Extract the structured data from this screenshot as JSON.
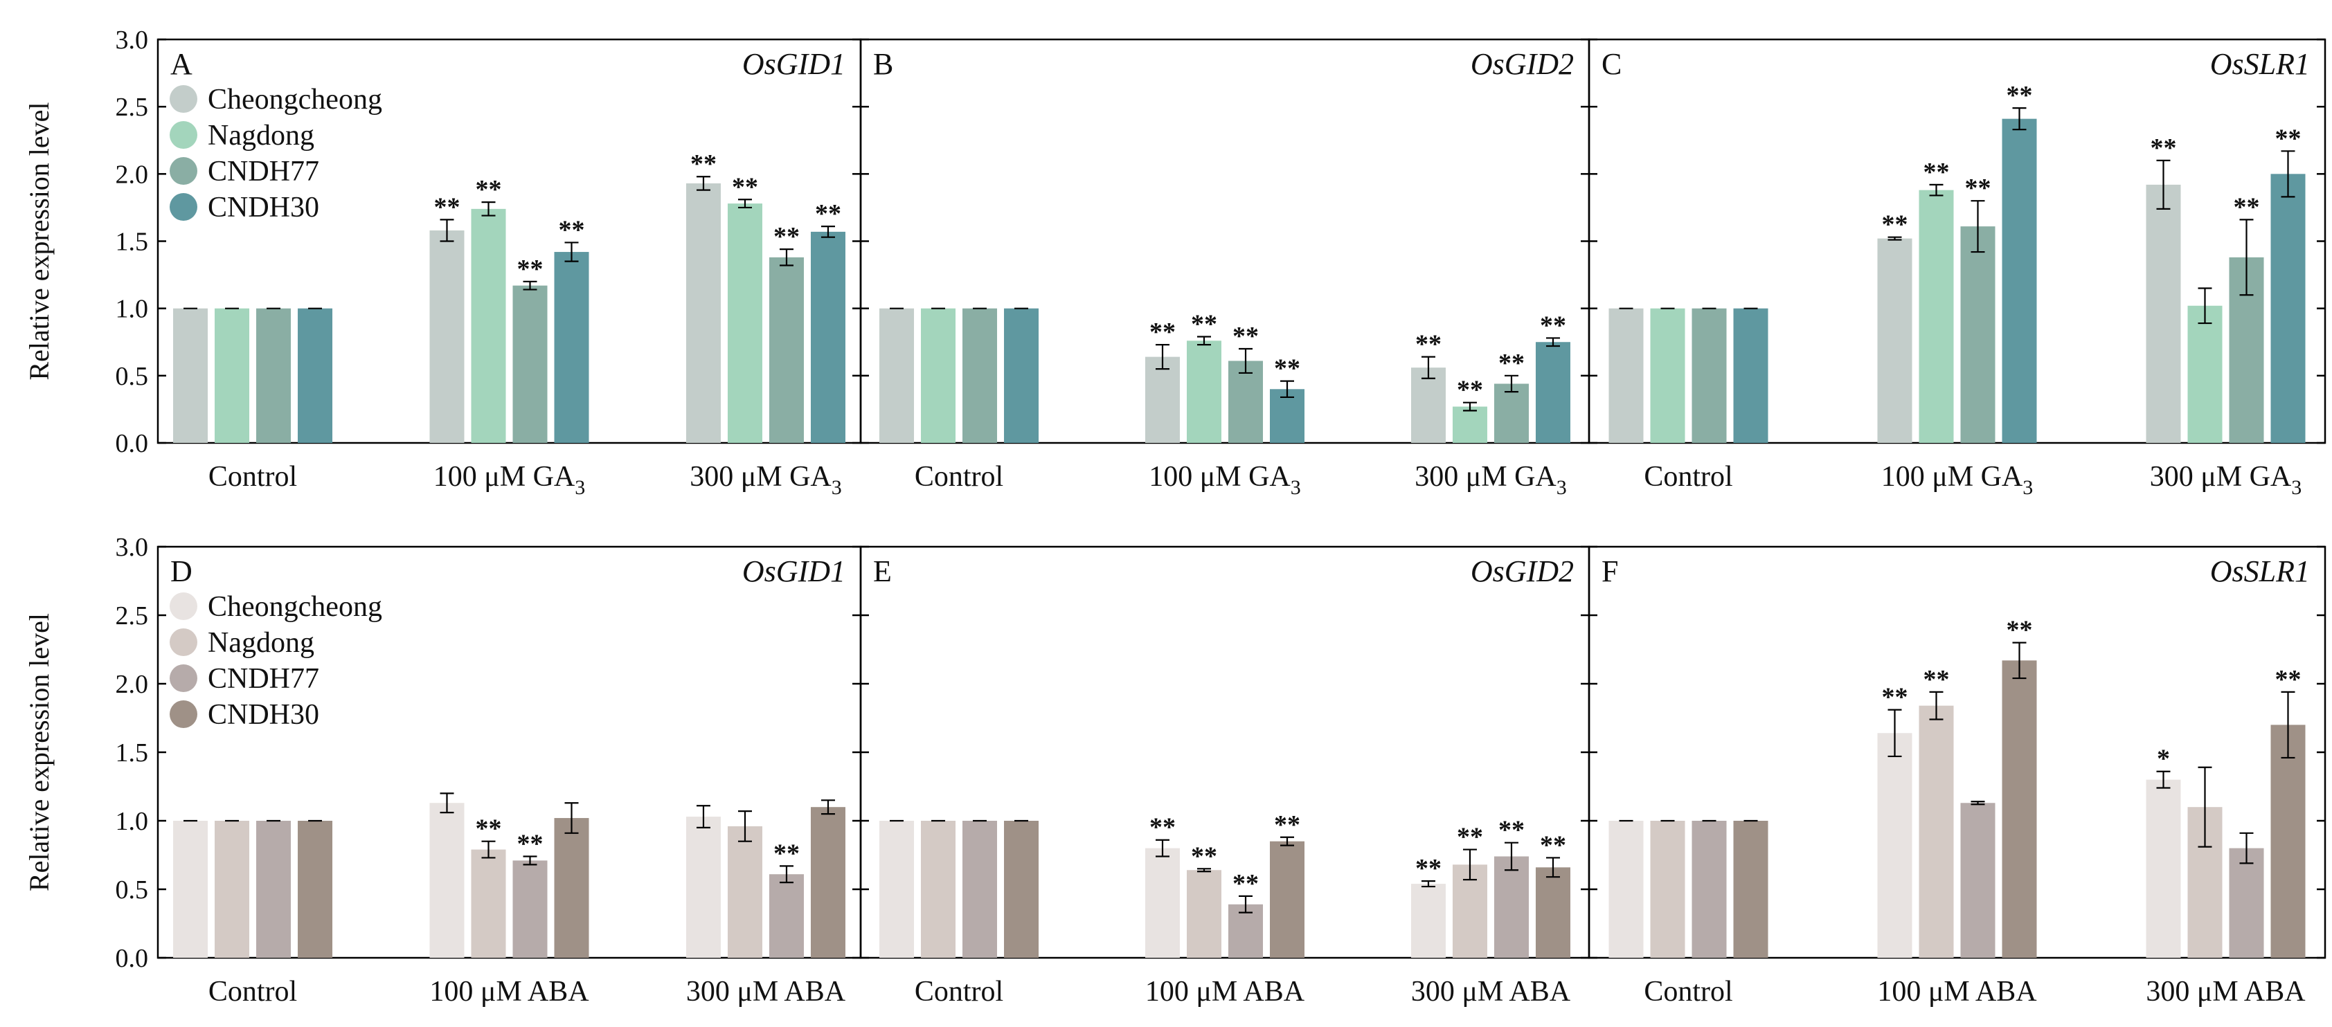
{
  "chart_data": [
    {
      "panel": "A",
      "gene": "OsGID1",
      "type": "bar",
      "categories": [
        "Control",
        "100 μM GA",
        "300 μM GA"
      ],
      "category_subscripts": [
        "",
        "3",
        "3"
      ],
      "series": [
        {
          "name": "Cheongcheong",
          "color": "#c3cdca",
          "values": [
            1.0,
            1.58,
            1.93
          ],
          "errors": [
            0.0,
            0.08,
            0.05
          ],
          "sig": [
            "",
            "**",
            "**"
          ]
        },
        {
          "name": "Nagdong",
          "color": "#a3d5bc",
          "values": [
            1.0,
            1.74,
            1.78
          ],
          "errors": [
            0.0,
            0.05,
            0.03
          ],
          "sig": [
            "",
            "**",
            "**"
          ]
        },
        {
          "name": "CNDH77",
          "color": "#8aaea4",
          "values": [
            1.0,
            1.17,
            1.38
          ],
          "errors": [
            0.0,
            0.03,
            0.06
          ],
          "sig": [
            "",
            "**",
            "**"
          ]
        },
        {
          "name": "CNDH30",
          "color": "#5f98a0",
          "values": [
            1.0,
            1.42,
            1.57
          ],
          "errors": [
            0.0,
            0.07,
            0.04
          ],
          "sig": [
            "",
            "**",
            "**"
          ]
        }
      ],
      "ylim": [
        0,
        3.0
      ],
      "yticks": [
        "0.0",
        "0.5",
        "1.0",
        "1.5",
        "2.0",
        "2.5",
        "3.0"
      ],
      "ylabel": "Relative expression level",
      "legend": true
    },
    {
      "panel": "B",
      "gene": "OsGID2",
      "type": "bar",
      "categories": [
        "Control",
        "100 μM GA",
        "300 μM GA"
      ],
      "category_subscripts": [
        "",
        "3",
        "3"
      ],
      "series": [
        {
          "name": "Cheongcheong",
          "color": "#c3cdca",
          "values": [
            1.0,
            0.64,
            0.56
          ],
          "errors": [
            0.0,
            0.09,
            0.08
          ],
          "sig": [
            "",
            "**",
            "**"
          ]
        },
        {
          "name": "Nagdong",
          "color": "#a3d5bc",
          "values": [
            1.0,
            0.76,
            0.27
          ],
          "errors": [
            0.0,
            0.03,
            0.03
          ],
          "sig": [
            "",
            "**",
            "**"
          ]
        },
        {
          "name": "CNDH77",
          "color": "#8aaea4",
          "values": [
            1.0,
            0.61,
            0.44
          ],
          "errors": [
            0.0,
            0.09,
            0.06
          ],
          "sig": [
            "",
            "**",
            "**"
          ]
        },
        {
          "name": "CNDH30",
          "color": "#5f98a0",
          "values": [
            1.0,
            0.4,
            0.75
          ],
          "errors": [
            0.0,
            0.06,
            0.03
          ],
          "sig": [
            "",
            "**",
            "**"
          ]
        }
      ],
      "ylim": [
        0,
        3.0
      ],
      "yticks": [
        "0.0",
        "0.5",
        "1.0",
        "1.5",
        "2.0",
        "2.5",
        "3.0"
      ],
      "ylabel": "",
      "legend": false
    },
    {
      "panel": "C",
      "gene": "OsSLR1",
      "type": "bar",
      "categories": [
        "Control",
        "100 μM GA",
        "300 μM GA"
      ],
      "category_subscripts": [
        "",
        "3",
        "3"
      ],
      "series": [
        {
          "name": "Cheongcheong",
          "color": "#c3cdca",
          "values": [
            1.0,
            1.52,
            1.92
          ],
          "errors": [
            0.0,
            0.01,
            0.18
          ],
          "sig": [
            "",
            "**",
            "**"
          ]
        },
        {
          "name": "Nagdong",
          "color": "#a3d5bc",
          "values": [
            1.0,
            1.88,
            1.02
          ],
          "errors": [
            0.0,
            0.04,
            0.13
          ],
          "sig": [
            "",
            "**",
            ""
          ]
        },
        {
          "name": "CNDH77",
          "color": "#8aaea4",
          "values": [
            1.0,
            1.61,
            1.38
          ],
          "errors": [
            0.0,
            0.19,
            0.28
          ],
          "sig": [
            "",
            "**",
            "**"
          ]
        },
        {
          "name": "CNDH30",
          "color": "#5f98a0",
          "values": [
            1.0,
            2.41,
            2.0
          ],
          "errors": [
            0.0,
            0.08,
            0.17
          ],
          "sig": [
            "",
            "**",
            "**"
          ]
        }
      ],
      "ylim": [
        0,
        3.0
      ],
      "yticks": [
        "0.0",
        "0.5",
        "1.0",
        "1.5",
        "2.0",
        "2.5",
        "3.0"
      ],
      "ylabel": "",
      "legend": false
    },
    {
      "panel": "D",
      "gene": "OsGID1",
      "type": "bar",
      "categories": [
        "Control",
        "100 μM ABA",
        "300 μM ABA"
      ],
      "category_subscripts": [
        "",
        "",
        ""
      ],
      "series": [
        {
          "name": "Cheongcheong",
          "color": "#e8e3e1",
          "values": [
            1.0,
            1.13,
            1.03
          ],
          "errors": [
            0.0,
            0.07,
            0.08
          ],
          "sig": [
            "",
            "",
            ""
          ]
        },
        {
          "name": "Nagdong",
          "color": "#d4cac5",
          "values": [
            1.0,
            0.79,
            0.96
          ],
          "errors": [
            0.0,
            0.06,
            0.11
          ],
          "sig": [
            "",
            "**",
            ""
          ]
        },
        {
          "name": "CNDH77",
          "color": "#b6abaa",
          "values": [
            1.0,
            0.71,
            0.61
          ],
          "errors": [
            0.0,
            0.03,
            0.06
          ],
          "sig": [
            "",
            "**",
            "**"
          ]
        },
        {
          "name": "CNDH30",
          "color": "#9f9187",
          "values": [
            1.0,
            1.02,
            1.1
          ],
          "errors": [
            0.0,
            0.11,
            0.05
          ],
          "sig": [
            "",
            "",
            ""
          ]
        }
      ],
      "ylim": [
        0,
        3.0
      ],
      "yticks": [
        "0.0",
        "0.5",
        "1.0",
        "1.5",
        "2.0",
        "2.5",
        "3.0"
      ],
      "ylabel": "Relative expression level",
      "legend": true
    },
    {
      "panel": "E",
      "gene": "OsGID2",
      "type": "bar",
      "categories": [
        "Control",
        "100 μM ABA",
        "300 μM ABA"
      ],
      "category_subscripts": [
        "",
        "",
        ""
      ],
      "series": [
        {
          "name": "Cheongcheong",
          "color": "#e8e3e1",
          "values": [
            1.0,
            0.8,
            0.54
          ],
          "errors": [
            0.0,
            0.06,
            0.02
          ],
          "sig": [
            "",
            "**",
            "**"
          ]
        },
        {
          "name": "Nagdong",
          "color": "#d4cac5",
          "values": [
            1.0,
            0.64,
            0.68
          ],
          "errors": [
            0.0,
            0.01,
            0.11
          ],
          "sig": [
            "",
            "**",
            "**"
          ]
        },
        {
          "name": "CNDH77",
          "color": "#b6abaa",
          "values": [
            1.0,
            0.39,
            0.74
          ],
          "errors": [
            0.0,
            0.06,
            0.1
          ],
          "sig": [
            "",
            "**",
            "**"
          ]
        },
        {
          "name": "CNDH30",
          "color": "#9f9187",
          "values": [
            1.0,
            0.85,
            0.66
          ],
          "errors": [
            0.0,
            0.03,
            0.07
          ],
          "sig": [
            "",
            "**",
            "**"
          ]
        }
      ],
      "ylim": [
        0,
        3.0
      ],
      "yticks": [
        "0.0",
        "0.5",
        "1.0",
        "1.5",
        "2.0",
        "2.5",
        "3.0"
      ],
      "ylabel": "",
      "legend": false
    },
    {
      "panel": "F",
      "gene": "OsSLR1",
      "type": "bar",
      "categories": [
        "Control",
        "100 μM ABA",
        "300 μM ABA"
      ],
      "category_subscripts": [
        "",
        "",
        ""
      ],
      "series": [
        {
          "name": "Cheongcheong",
          "color": "#e8e3e1",
          "values": [
            1.0,
            1.64,
            1.3
          ],
          "errors": [
            0.0,
            0.17,
            0.06
          ],
          "sig": [
            "",
            "**",
            "*"
          ]
        },
        {
          "name": "Nagdong",
          "color": "#d4cac5",
          "values": [
            1.0,
            1.84,
            1.1
          ],
          "errors": [
            0.0,
            0.1,
            0.29
          ],
          "sig": [
            "",
            "**",
            ""
          ]
        },
        {
          "name": "CNDH77",
          "color": "#b6abaa",
          "values": [
            1.0,
            1.13,
            0.8
          ],
          "errors": [
            0.0,
            0.01,
            0.11
          ],
          "sig": [
            "",
            "",
            ""
          ]
        },
        {
          "name": "CNDH30",
          "color": "#9f9187",
          "values": [
            1.0,
            2.17,
            1.7
          ],
          "errors": [
            0.0,
            0.13,
            0.24
          ],
          "sig": [
            "",
            "**",
            "**"
          ]
        }
      ],
      "ylim": [
        0,
        3.0
      ],
      "yticks": [
        "0.0",
        "0.5",
        "1.0",
        "1.5",
        "2.0",
        "2.5",
        "3.0"
      ],
      "ylabel": "",
      "legend": false
    }
  ]
}
